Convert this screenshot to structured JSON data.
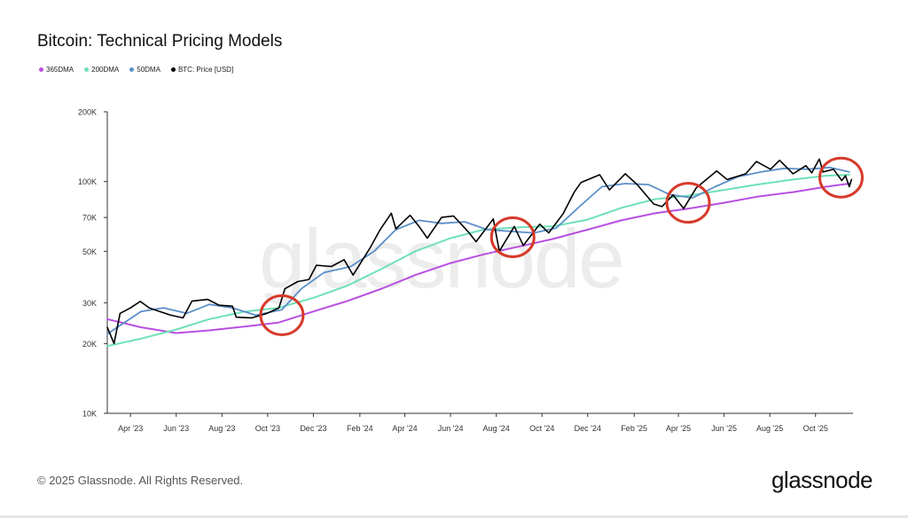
{
  "title": "Bitcoin: Technical Pricing Models",
  "watermark": "glassnode",
  "copyright": "© 2025 Glassnode. All Rights Reserved.",
  "brand": "glassnode",
  "chart_data": {
    "type": "line",
    "y_scale": "log",
    "ylim": [
      10000,
      200000
    ],
    "y_ticks": [
      {
        "value": 10000,
        "label": "10K"
      },
      {
        "value": 20000,
        "label": "20K"
      },
      {
        "value": 30000,
        "label": "30K"
      },
      {
        "value": 50000,
        "label": "50K"
      },
      {
        "value": 70000,
        "label": "70K"
      },
      {
        "value": 100000,
        "label": "100K"
      },
      {
        "value": 200000,
        "label": "200K"
      }
    ],
    "xlim": [
      "2023-03-01",
      "2025-11-20"
    ],
    "x_ticks": [
      {
        "date": "2023-04-01",
        "label": "Apr '23"
      },
      {
        "date": "2023-06-01",
        "label": "Jun '23"
      },
      {
        "date": "2023-08-01",
        "label": "Aug '23"
      },
      {
        "date": "2023-10-01",
        "label": "Oct '23"
      },
      {
        "date": "2023-12-01",
        "label": "Dec '23"
      },
      {
        "date": "2024-02-01",
        "label": "Feb '24"
      },
      {
        "date": "2024-04-01",
        "label": "Apr '24"
      },
      {
        "date": "2024-06-01",
        "label": "Jun '24"
      },
      {
        "date": "2024-08-01",
        "label": "Aug '24"
      },
      {
        "date": "2024-10-01",
        "label": "Oct '24"
      },
      {
        "date": "2024-12-01",
        "label": "Dec '24"
      },
      {
        "date": "2025-02-01",
        "label": "Feb '25"
      },
      {
        "date": "2025-04-01",
        "label": "Apr '25"
      },
      {
        "date": "2025-06-01",
        "label": "Jun '25"
      },
      {
        "date": "2025-08-01",
        "label": "Aug '25"
      },
      {
        "date": "2025-10-01",
        "label": "Oct '25"
      }
    ],
    "legend_position": "top-left",
    "grid": false,
    "series": [
      {
        "name": "365DMA",
        "color": "#b84fe0",
        "width": 2,
        "points": [
          [
            "2023-03-01",
            25500
          ],
          [
            "2023-04-15",
            23500
          ],
          [
            "2023-06-01",
            22200
          ],
          [
            "2023-07-15",
            22800
          ],
          [
            "2023-09-01",
            23700
          ],
          [
            "2023-10-15",
            24600
          ],
          [
            "2023-12-01",
            27500
          ],
          [
            "2024-01-15",
            30500
          ],
          [
            "2024-03-01",
            34500
          ],
          [
            "2024-04-15",
            39500
          ],
          [
            "2024-06-01",
            44500
          ],
          [
            "2024-07-15",
            48500
          ],
          [
            "2024-09-01",
            52500
          ],
          [
            "2024-10-15",
            56500
          ],
          [
            "2024-12-01",
            62000
          ],
          [
            "2025-01-15",
            68000
          ],
          [
            "2025-03-01",
            73000
          ],
          [
            "2025-04-15",
            76500
          ],
          [
            "2025-06-01",
            81000
          ],
          [
            "2025-07-15",
            86000
          ],
          [
            "2025-09-01",
            90000
          ],
          [
            "2025-10-15",
            95000
          ],
          [
            "2025-11-15",
            98000
          ]
        ]
      },
      {
        "name": "200DMA",
        "color": "#6ee0b8",
        "width": 2,
        "points": [
          [
            "2023-03-01",
            19500
          ],
          [
            "2023-04-15",
            21000
          ],
          [
            "2023-06-01",
            23000
          ],
          [
            "2023-07-15",
            25500
          ],
          [
            "2023-09-01",
            27500
          ],
          [
            "2023-10-15",
            28500
          ],
          [
            "2023-12-01",
            31500
          ],
          [
            "2024-01-15",
            35500
          ],
          [
            "2024-03-01",
            42000
          ],
          [
            "2024-04-15",
            50000
          ],
          [
            "2024-06-01",
            57000
          ],
          [
            "2024-07-15",
            62000
          ],
          [
            "2024-09-01",
            63500
          ],
          [
            "2024-10-15",
            64000
          ],
          [
            "2024-12-01",
            68500
          ],
          [
            "2025-01-15",
            77000
          ],
          [
            "2025-03-01",
            84000
          ],
          [
            "2025-04-15",
            87000
          ],
          [
            "2025-06-01",
            92000
          ],
          [
            "2025-07-15",
            97000
          ],
          [
            "2025-09-01",
            102000
          ],
          [
            "2025-10-15",
            106000
          ],
          [
            "2025-11-15",
            107000
          ]
        ]
      },
      {
        "name": "50DMA",
        "color": "#5b8fc9",
        "width": 1.8,
        "points": [
          [
            "2023-03-01",
            22000
          ],
          [
            "2023-04-15",
            27500
          ],
          [
            "2023-05-15",
            28500
          ],
          [
            "2023-06-15",
            27000
          ],
          [
            "2023-07-15",
            29500
          ],
          [
            "2023-08-15",
            28500
          ],
          [
            "2023-09-15",
            26500
          ],
          [
            "2023-10-20",
            28000
          ],
          [
            "2023-11-15",
            34500
          ],
          [
            "2023-12-15",
            40500
          ],
          [
            "2024-01-20",
            43000
          ],
          [
            "2024-02-20",
            50000
          ],
          [
            "2024-03-20",
            62000
          ],
          [
            "2024-04-20",
            68000
          ],
          [
            "2024-05-20",
            66000
          ],
          [
            "2024-06-20",
            67000
          ],
          [
            "2024-07-20",
            62000
          ],
          [
            "2024-08-20",
            61000
          ],
          [
            "2024-09-20",
            60000
          ],
          [
            "2024-10-20",
            63000
          ],
          [
            "2024-11-20",
            78000
          ],
          [
            "2024-12-20",
            95000
          ],
          [
            "2025-01-20",
            98000
          ],
          [
            "2025-02-20",
            97000
          ],
          [
            "2025-03-20",
            88000
          ],
          [
            "2025-04-20",
            85000
          ],
          [
            "2025-05-20",
            95000
          ],
          [
            "2025-06-20",
            105000
          ],
          [
            "2025-07-20",
            110000
          ],
          [
            "2025-08-20",
            114000
          ],
          [
            "2025-09-20",
            113000
          ],
          [
            "2025-10-20",
            115000
          ],
          [
            "2025-11-15",
            110000
          ]
        ]
      },
      {
        "name": "BTC: Price [USD]",
        "color": "#000000",
        "width": 1.6,
        "points": [
          [
            "2023-03-01",
            23500
          ],
          [
            "2023-03-10",
            20000
          ],
          [
            "2023-03-18",
            27000
          ],
          [
            "2023-04-01",
            28500
          ],
          [
            "2023-04-14",
            30400
          ],
          [
            "2023-04-26",
            28500
          ],
          [
            "2023-05-10",
            27500
          ],
          [
            "2023-05-25",
            26500
          ],
          [
            "2023-06-10",
            25800
          ],
          [
            "2023-06-22",
            30500
          ],
          [
            "2023-07-13",
            31000
          ],
          [
            "2023-07-28",
            29300
          ],
          [
            "2023-08-15",
            29000
          ],
          [
            "2023-08-20",
            26000
          ],
          [
            "2023-09-10",
            25800
          ],
          [
            "2023-09-30",
            27000
          ],
          [
            "2023-10-16",
            28500
          ],
          [
            "2023-10-24",
            34500
          ],
          [
            "2023-11-10",
            37000
          ],
          [
            "2023-11-25",
            37800
          ],
          [
            "2023-12-05",
            43500
          ],
          [
            "2023-12-25",
            43000
          ],
          [
            "2024-01-11",
            46000
          ],
          [
            "2024-01-23",
            39500
          ],
          [
            "2024-02-15",
            52000
          ],
          [
            "2024-02-28",
            62000
          ],
          [
            "2024-03-14",
            73000
          ],
          [
            "2024-03-20",
            62500
          ],
          [
            "2024-04-08",
            71500
          ],
          [
            "2024-04-20",
            64000
          ],
          [
            "2024-05-01",
            57000
          ],
          [
            "2024-05-20",
            70000
          ],
          [
            "2024-06-05",
            71000
          ],
          [
            "2024-06-25",
            60500
          ],
          [
            "2024-07-05",
            55000
          ],
          [
            "2024-07-28",
            69000
          ],
          [
            "2024-08-05",
            50000
          ],
          [
            "2024-08-25",
            64000
          ],
          [
            "2024-09-06",
            53000
          ],
          [
            "2024-09-28",
            65500
          ],
          [
            "2024-10-10",
            60000
          ],
          [
            "2024-10-29",
            72500
          ],
          [
            "2024-11-13",
            90000
          ],
          [
            "2024-11-22",
            99000
          ],
          [
            "2024-12-17",
            107000
          ],
          [
            "2024-12-30",
            92000
          ],
          [
            "2025-01-20",
            108000
          ],
          [
            "2025-02-05",
            97000
          ],
          [
            "2025-02-27",
            80000
          ],
          [
            "2025-03-10",
            78000
          ],
          [
            "2025-03-25",
            87500
          ],
          [
            "2025-04-08",
            76500
          ],
          [
            "2025-04-25",
            94000
          ],
          [
            "2025-05-22",
            111000
          ],
          [
            "2025-06-05",
            102000
          ],
          [
            "2025-06-30",
            108000
          ],
          [
            "2025-07-14",
            122000
          ],
          [
            "2025-08-02",
            113000
          ],
          [
            "2025-08-14",
            123500
          ],
          [
            "2025-09-01",
            108000
          ],
          [
            "2025-09-18",
            117000
          ],
          [
            "2025-09-26",
            109000
          ],
          [
            "2025-10-06",
            125000
          ],
          [
            "2025-10-11",
            110000
          ],
          [
            "2025-10-25",
            113000
          ],
          [
            "2025-11-05",
            101000
          ],
          [
            "2025-11-10",
            106000
          ],
          [
            "2025-11-15",
            95000
          ],
          [
            "2025-11-18",
            102000
          ]
        ]
      }
    ],
    "annotations": [
      {
        "type": "circle",
        "color": "#d63a2a",
        "center_date": "2023-10-20",
        "center_value": 26500
      },
      {
        "type": "circle",
        "color": "#d63a2a",
        "center_date": "2024-08-23",
        "center_value": 57500
      },
      {
        "type": "circle",
        "color": "#d63a2a",
        "center_date": "2025-04-14",
        "center_value": 81000
      },
      {
        "type": "circle",
        "color": "#d63a2a",
        "center_date": "2025-11-04",
        "center_value": 104000
      }
    ]
  }
}
